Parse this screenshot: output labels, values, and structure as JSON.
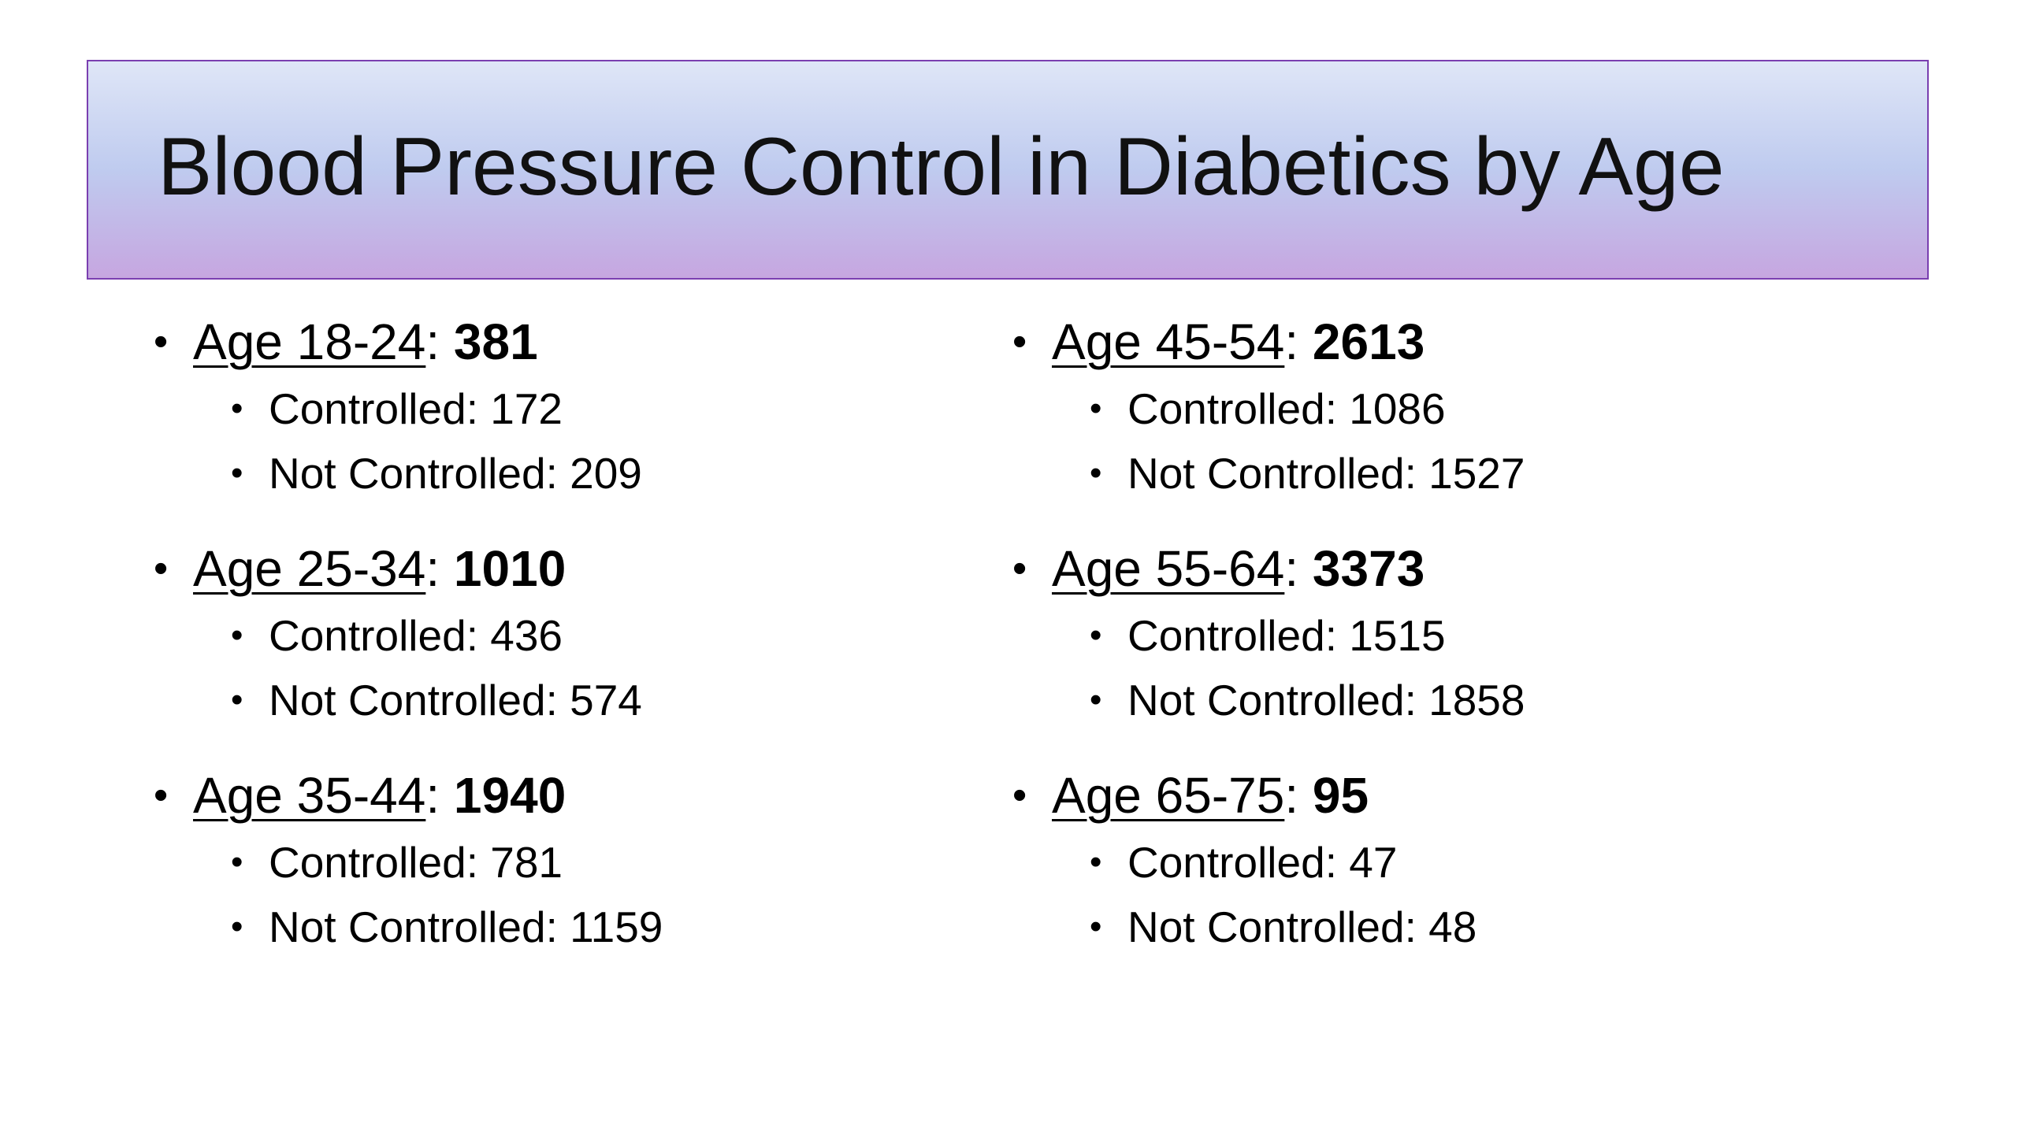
{
  "slide": {
    "title": "Blood Pressure Control in Diabetics by Age",
    "bullet_glyph": "•",
    "left_groups": [
      {
        "age_label": "Age 18-24",
        "separator": ":",
        "total": "381",
        "controlled": "Controlled: 172",
        "not_controlled": "Not Controlled: 209"
      },
      {
        "age_label": "Age 25-34",
        "separator": ":",
        "total": "1010",
        "controlled": "Controlled: 436",
        "not_controlled": "Not Controlled: 574"
      },
      {
        "age_label": "Age 35-44",
        "separator": ":",
        "total": "1940",
        "controlled": "Controlled: 781",
        "not_controlled": "Not Controlled: 1159"
      }
    ],
    "right_groups": [
      {
        "age_label": "Age 45-54",
        "separator": ":",
        "total": "2613",
        "controlled": "Controlled: 1086",
        "not_controlled": "Not Controlled: 1527"
      },
      {
        "age_label": "Age 55-64",
        "separator": ":",
        "total": "3373",
        "controlled": "Controlled: 1515",
        "not_controlled": "Not Controlled: 1858"
      },
      {
        "age_label": "Age 65-75",
        "separator": ":",
        "total": "95",
        "controlled": "Controlled: 47",
        "not_controlled": "Not Controlled: 48"
      }
    ]
  },
  "colors": {
    "title_border": "#7a3fb0",
    "title_gradient_top": "#dfe6f7",
    "title_gradient_mid": "#bfcbef",
    "title_gradient_bottom": "#c6a6e0",
    "text": "#000000"
  }
}
